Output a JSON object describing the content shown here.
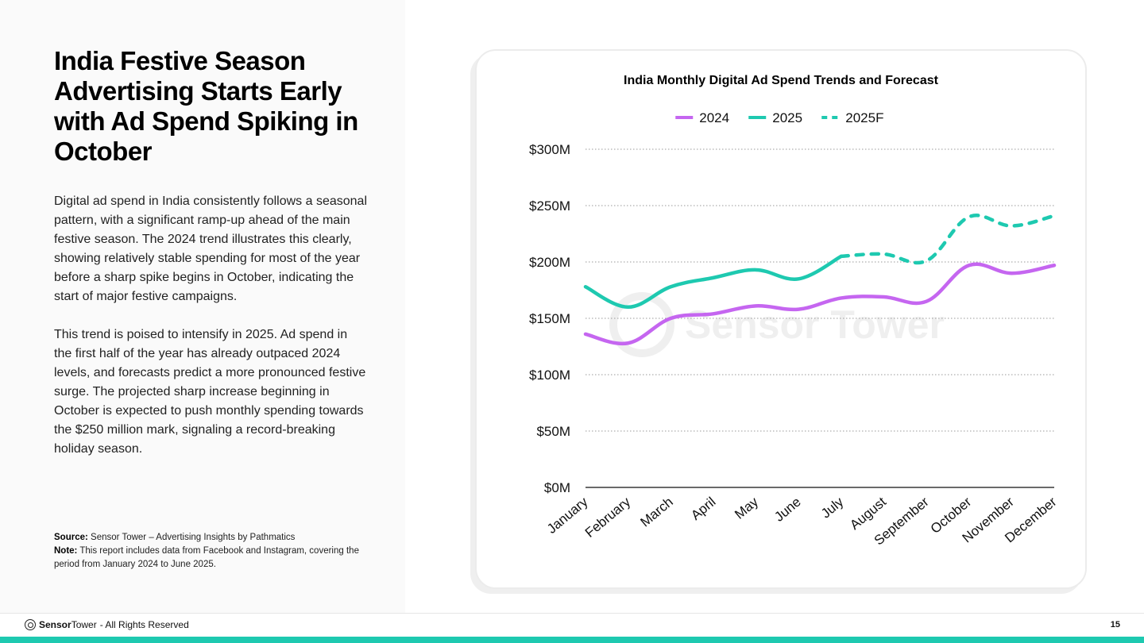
{
  "left": {
    "title": "India Festive Season Advertising Starts Early with Ad Spend Spiking in October",
    "paragraphs": [
      "Digital ad spend in India consistently follows a seasonal pattern, with a significant ramp-up ahead of the main festive season. The 2024 trend illustrates this clearly, showing relatively stable spending for most of the year before a sharp spike begins in October, indicating the start of major festive campaigns.",
      "This trend is poised to intensify in 2025. Ad spend in the first half of the year has already outpaced 2024 levels, and forecasts predict a more pronounced festive surge. The projected sharp increase beginning in October is expected to push monthly spending towards the $250 million mark, signaling a record-breaking holiday season."
    ],
    "source_label": "Source:",
    "source_text": "Sensor Tower – Advertising Insights by Pathmatics",
    "note_label": "Note:",
    "note_text": "This report includes data from Facebook and Instagram, covering the period from January 2024  to June 2025."
  },
  "chart_data": {
    "type": "line",
    "title": "India Monthly Digital Ad Spend Trends and Forecast",
    "categories": [
      "January",
      "February",
      "March",
      "April",
      "May",
      "June",
      "July",
      "August",
      "September",
      "October",
      "November",
      "December"
    ],
    "y_ticks": [
      "$0M",
      "$50M",
      "$100M",
      "$150M",
      "$200M",
      "$250M",
      "$300M"
    ],
    "ylim": [
      0,
      300
    ],
    "y_unit": "$M",
    "legend_position": "top-center",
    "grid": true,
    "watermark": "Sensor Tower",
    "series": [
      {
        "name": "2024",
        "color": "#c566f0",
        "dash": false,
        "values": [
          136,
          128,
          150,
          154,
          161,
          158,
          168,
          169,
          165,
          197,
          190,
          197
        ]
      },
      {
        "name": "2025",
        "color": "#1ec9b0",
        "dash": false,
        "values": [
          178,
          160,
          178,
          186,
          193,
          185,
          205,
          null,
          null,
          null,
          null,
          null
        ]
      },
      {
        "name": "2025F",
        "color": "#1ec9b0",
        "dash": true,
        "values": [
          null,
          null,
          null,
          null,
          null,
          null,
          205,
          207,
          201,
          240,
          232,
          241
        ]
      }
    ]
  },
  "footer": {
    "brand": "Sensor",
    "brand2": "Tower",
    "rights": " - All Rights Reserved",
    "page": "15"
  },
  "colors": {
    "accent": "#1ec9b0",
    "purple": "#c566f0"
  }
}
